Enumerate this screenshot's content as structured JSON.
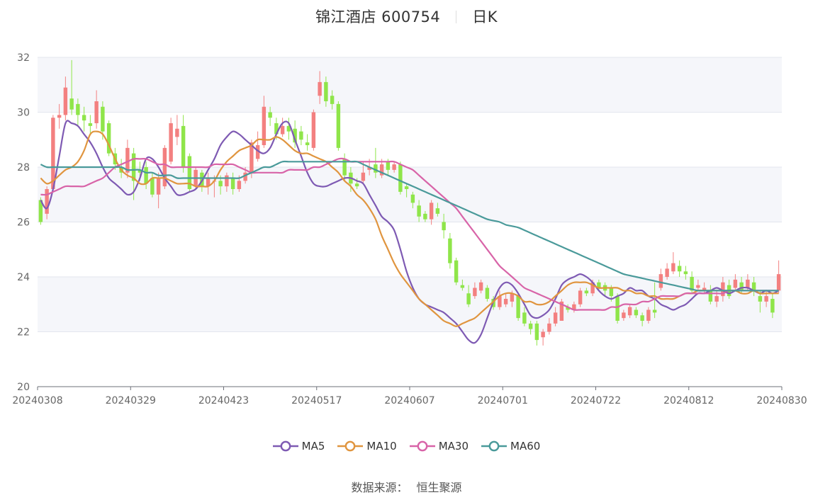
{
  "header": {
    "title": "锦江酒店 600754",
    "period": "日K"
  },
  "source": {
    "label": "数据来源：",
    "name": "恒生聚源"
  },
  "colors": {
    "up": "#f38080",
    "down": "#8fe54a",
    "ma5": "#7e5ab3",
    "ma10": "#e0953f",
    "ma30": "#d864a8",
    "ma60": "#4a9a9a",
    "band": "#f5f6fa",
    "grid": "#e3e6ee",
    "axis": "#666666"
  },
  "chart_data": {
    "type": "candlestick",
    "ylim": [
      20,
      32
    ],
    "y_ticks": [
      "20",
      "22",
      "24",
      "26",
      "28",
      "30",
      "32"
    ],
    "x_ticks": [
      "20240308",
      "20240329",
      "20240423",
      "20240517",
      "20240607",
      "20240701",
      "20240722",
      "20240812",
      "20240830"
    ],
    "num_bars": 120,
    "x_tick_indices": [
      0,
      15,
      30,
      45,
      60,
      75,
      90,
      105,
      120
    ],
    "legend": [
      "MA5",
      "MA10",
      "MA30",
      "MA60"
    ],
    "candles": [
      [
        26.8,
        26.0,
        26.9,
        25.9
      ],
      [
        26.3,
        27.2,
        27.3,
        26.1
      ],
      [
        27.2,
        29.8,
        29.9,
        27.1
      ],
      [
        29.8,
        29.9,
        30.3,
        29.4
      ],
      [
        29.9,
        30.9,
        31.3,
        29.7
      ],
      [
        30.5,
        30.1,
        31.9,
        29.9
      ],
      [
        30.3,
        29.9,
        30.5,
        29.5
      ],
      [
        29.9,
        29.7,
        30.2,
        29.3
      ],
      [
        29.6,
        29.5,
        29.9,
        29.2
      ],
      [
        29.6,
        30.4,
        30.8,
        29.4
      ],
      [
        30.2,
        29.3,
        30.4,
        29.0
      ],
      [
        29.6,
        28.5,
        29.7,
        28.4
      ],
      [
        28.5,
        28.1,
        28.7,
        27.9
      ],
      [
        28.0,
        27.8,
        28.3,
        27.6
      ],
      [
        27.8,
        28.7,
        29.0,
        27.6
      ],
      [
        28.5,
        27.5,
        28.7,
        26.8
      ],
      [
        27.9,
        27.8,
        28.2,
        27.5
      ],
      [
        28.0,
        27.4,
        28.2,
        27.2
      ],
      [
        27.6,
        27.0,
        27.8,
        26.9
      ],
      [
        27.0,
        27.6,
        27.8,
        26.5
      ],
      [
        27.3,
        28.7,
        28.8,
        27.2
      ],
      [
        28.2,
        29.6,
        29.8,
        28.1
      ],
      [
        29.1,
        29.4,
        29.9,
        28.8
      ],
      [
        29.5,
        28.0,
        29.9,
        27.8
      ],
      [
        28.4,
        27.2,
        28.5,
        27.1
      ],
      [
        27.3,
        27.9,
        28.0,
        27.2
      ],
      [
        27.8,
        27.3,
        27.9,
        27.1
      ],
      [
        27.3,
        27.6,
        27.8,
        27.0
      ],
      [
        27.5,
        27.5,
        27.7,
        26.9
      ],
      [
        27.5,
        27.3,
        27.7,
        27.0
      ],
      [
        27.3,
        27.7,
        27.8,
        27.1
      ],
      [
        27.6,
        27.2,
        27.8,
        27.0
      ],
      [
        27.2,
        27.5,
        27.7,
        27.1
      ],
      [
        27.5,
        27.8,
        28.0,
        27.4
      ],
      [
        27.8,
        28.9,
        29.0,
        27.6
      ],
      [
        28.3,
        28.8,
        29.3,
        28.2
      ],
      [
        28.8,
        30.2,
        30.6,
        28.7
      ],
      [
        30.0,
        29.8,
        30.2,
        29.5
      ],
      [
        29.6,
        29.2,
        29.8,
        29.0
      ],
      [
        29.2,
        29.5,
        29.8,
        29.1
      ],
      [
        29.5,
        29.3,
        29.8,
        29.0
      ],
      [
        29.4,
        28.9,
        29.7,
        28.7
      ],
      [
        29.3,
        29.0,
        29.5,
        28.8
      ],
      [
        28.9,
        28.8,
        29.2,
        28.6
      ],
      [
        28.7,
        30.0,
        30.1,
        28.6
      ],
      [
        30.6,
        31.1,
        31.5,
        30.3
      ],
      [
        31.1,
        30.4,
        31.3,
        30.2
      ],
      [
        30.6,
        30.3,
        30.8,
        30.1
      ],
      [
        30.3,
        28.7,
        30.4,
        28.6
      ],
      [
        28.3,
        27.7,
        28.5,
        27.5
      ],
      [
        27.8,
        27.4,
        28.0,
        27.1
      ],
      [
        27.4,
        27.3,
        27.6,
        27.2
      ],
      [
        27.5,
        27.8,
        28.2,
        27.4
      ],
      [
        27.9,
        28.0,
        28.3,
        27.7
      ],
      [
        28.1,
        27.8,
        28.7,
        27.6
      ],
      [
        27.7,
        28.1,
        28.3,
        27.6
      ],
      [
        28.2,
        27.9,
        28.3,
        27.7
      ],
      [
        27.9,
        28.1,
        28.2,
        27.8
      ],
      [
        28.1,
        27.1,
        28.2,
        27.0
      ],
      [
        27.3,
        27.2,
        27.4,
        26.9
      ],
      [
        27.0,
        26.7,
        27.1,
        26.5
      ],
      [
        26.6,
        26.2,
        26.8,
        26.0
      ],
      [
        26.3,
        26.1,
        26.4,
        26.0
      ],
      [
        26.1,
        26.7,
        26.8,
        25.9
      ],
      [
        26.5,
        26.3,
        26.7,
        26.2
      ],
      [
        26.0,
        25.7,
        26.3,
        25.4
      ],
      [
        25.4,
        24.5,
        25.6,
        24.3
      ],
      [
        24.6,
        23.8,
        24.7,
        23.7
      ],
      [
        23.7,
        23.6,
        23.9,
        23.5
      ],
      [
        23.4,
        23.0,
        23.7,
        22.9
      ],
      [
        23.3,
        23.6,
        23.8,
        23.2
      ],
      [
        23.5,
        23.8,
        23.9,
        23.4
      ],
      [
        23.6,
        23.2,
        23.7,
        23.1
      ],
      [
        23.2,
        22.9,
        23.3,
        22.8
      ],
      [
        22.9,
        23.3,
        23.5,
        22.8
      ],
      [
        23.0,
        23.2,
        23.4,
        22.9
      ],
      [
        23.1,
        23.4,
        23.5,
        22.9
      ],
      [
        23.3,
        22.5,
        23.4,
        22.4
      ],
      [
        22.7,
        22.3,
        22.9,
        22.2
      ],
      [
        22.3,
        22.1,
        22.4,
        21.9
      ],
      [
        22.3,
        21.7,
        22.4,
        21.5
      ],
      [
        21.8,
        22.0,
        22.1,
        21.5
      ],
      [
        22.0,
        22.3,
        22.5,
        21.9
      ],
      [
        22.3,
        22.7,
        22.9,
        22.2
      ],
      [
        22.4,
        23.1,
        23.2,
        22.4
      ],
      [
        22.9,
        22.8,
        23.0,
        22.7
      ],
      [
        22.8,
        23.0,
        23.1,
        22.7
      ],
      [
        23.0,
        23.5,
        23.6,
        22.9
      ],
      [
        23.5,
        23.4,
        23.6,
        23.3
      ],
      [
        23.4,
        23.8,
        23.9,
        23.3
      ],
      [
        23.8,
        23.6,
        23.9,
        23.5
      ],
      [
        23.7,
        23.5,
        23.8,
        23.3
      ],
      [
        23.6,
        23.3,
        23.7,
        23.1
      ],
      [
        23.3,
        22.4,
        23.4,
        22.3
      ],
      [
        22.5,
        22.7,
        22.8,
        22.4
      ],
      [
        22.6,
        22.9,
        23.0,
        22.5
      ],
      [
        22.8,
        22.6,
        22.9,
        22.5
      ],
      [
        22.6,
        22.4,
        22.7,
        22.2
      ],
      [
        22.4,
        22.8,
        22.9,
        22.3
      ],
      [
        22.8,
        22.7,
        23.8,
        22.5
      ],
      [
        23.6,
        24.1,
        24.3,
        23.5
      ],
      [
        24.0,
        24.3,
        24.5,
        23.9
      ],
      [
        24.2,
        24.5,
        24.9,
        24.1
      ],
      [
        24.4,
        24.2,
        24.6,
        24.0
      ],
      [
        24.2,
        24.1,
        24.4,
        23.9
      ],
      [
        24.0,
        23.5,
        24.2,
        23.4
      ],
      [
        23.6,
        23.7,
        23.9,
        23.5
      ],
      [
        23.5,
        23.6,
        23.8,
        23.4
      ],
      [
        23.5,
        23.1,
        23.7,
        23.0
      ],
      [
        23.1,
        23.3,
        23.5,
        22.9
      ],
      [
        23.3,
        23.8,
        24.0,
        23.1
      ],
      [
        23.7,
        23.3,
        23.9,
        23.2
      ],
      [
        23.6,
        23.9,
        24.1,
        23.5
      ],
      [
        23.8,
        23.5,
        24.0,
        23.4
      ],
      [
        23.6,
        23.9,
        24.1,
        23.5
      ],
      [
        23.8,
        23.5,
        24.0,
        23.3
      ],
      [
        23.3,
        23.1,
        23.5,
        22.7
      ],
      [
        23.1,
        23.3,
        23.5,
        22.9
      ],
      [
        23.2,
        22.7,
        23.4,
        22.5
      ],
      [
        23.5,
        24.1,
        24.6,
        23.4
      ]
    ],
    "series": [
      {
        "name": "MA5",
        "values": [
          26.8,
          26.5,
          27.2,
          28.4,
          29.6,
          29.6,
          29.5,
          29.2,
          28.9,
          28.5,
          28.0,
          27.6,
          27.4,
          27.2,
          27.0,
          27.1,
          27.6,
          28.3,
          28.3,
          28.0,
          27.6,
          27.3,
          27.0,
          27.0,
          27.1,
          27.2,
          27.5,
          27.9,
          28.3,
          28.8,
          29.1,
          29.3,
          29.2,
          29.0,
          28.8,
          28.6,
          28.5,
          28.7,
          29.2,
          29.6,
          29.6,
          29.0,
          28.4,
          27.8,
          27.4,
          27.3,
          27.3,
          27.4,
          27.5,
          27.6,
          27.6,
          27.5,
          27.4,
          27.0,
          26.6,
          26.2,
          26.0,
          25.7,
          25.0,
          24.2,
          23.6,
          23.2,
          23.0,
          22.9,
          22.8,
          22.7,
          22.5,
          22.3,
          22.0,
          21.7,
          21.6,
          21.9,
          22.5,
          23.1,
          23.6,
          23.8,
          23.7,
          23.4,
          23.0,
          22.6,
          22.5,
          22.6,
          22.8,
          23.2,
          23.7,
          23.9,
          24.0,
          24.1,
          24.0,
          23.8,
          23.5,
          23.3,
          23.2,
          23.3,
          23.4,
          23.6,
          23.5,
          23.5,
          23.3,
          23.2,
          23.0,
          22.9,
          22.8,
          22.9,
          23.0,
          23.2,
          23.4,
          23.4,
          23.5,
          23.6,
          23.5,
          23.4,
          23.5,
          23.6,
          23.6,
          23.5,
          23.4,
          23.5,
          23.4,
          23.5
        ]
      },
      {
        "name": "MA10",
        "values": [
          27.6,
          27.4,
          27.5,
          27.7,
          27.9,
          28.0,
          28.2,
          28.6,
          29.2,
          29.3,
          29.2,
          28.8,
          28.3,
          27.9,
          27.7,
          27.6,
          27.4,
          27.4,
          27.6,
          27.6,
          27.6,
          27.5,
          27.4,
          27.4,
          27.4,
          27.3,
          27.3,
          27.3,
          27.5,
          27.9,
          28.2,
          28.4,
          28.6,
          28.7,
          28.8,
          29.0,
          29.0,
          29.0,
          29.1,
          29.0,
          28.8,
          28.6,
          28.5,
          28.5,
          28.4,
          28.3,
          28.2,
          28.0,
          27.8,
          27.5,
          27.3,
          27.0,
          26.8,
          26.5,
          26.1,
          25.5,
          25.0,
          24.5,
          24.1,
          23.8,
          23.5,
          23.2,
          23.0,
          22.8,
          22.6,
          22.4,
          22.3,
          22.2,
          22.3,
          22.4,
          22.5,
          22.7,
          22.9,
          23.1,
          23.3,
          23.4,
          23.4,
          23.3,
          23.1,
          23.1,
          23.0,
          23.0,
          23.1,
          23.3,
          23.5,
          23.7,
          23.8,
          23.8,
          23.8,
          23.7,
          23.6,
          23.6,
          23.6,
          23.6,
          23.5,
          23.5,
          23.4,
          23.4,
          23.3,
          23.3,
          23.2,
          23.2,
          23.2,
          23.3,
          23.4,
          23.4,
          23.5,
          23.5,
          23.5,
          23.5,
          23.5,
          23.5,
          23.5,
          23.4,
          23.4,
          23.5,
          23.4,
          23.4,
          23.4,
          23.4
        ]
      },
      {
        "name": "MA30",
        "values": [
          27.0,
          27.0,
          27.1,
          27.2,
          27.3,
          27.3,
          27.3,
          27.3,
          27.4,
          27.5,
          27.6,
          27.8,
          28.0,
          28.1,
          28.2,
          28.3,
          28.3,
          28.3,
          28.2,
          28.1,
          28.1,
          28.0,
          28.0,
          28.0,
          28.0,
          28.0,
          28.0,
          28.0,
          28.1,
          28.1,
          28.1,
          28.1,
          28.0,
          27.9,
          27.8,
          27.8,
          27.8,
          27.8,
          27.8,
          27.8,
          27.9,
          27.9,
          27.9,
          27.9,
          28.0,
          28.0,
          28.1,
          28.2,
          28.3,
          28.3,
          28.2,
          28.2,
          28.2,
          28.2,
          28.2,
          28.2,
          28.2,
          28.2,
          28.1,
          28.0,
          27.9,
          27.7,
          27.5,
          27.3,
          27.1,
          26.9,
          26.7,
          26.5,
          26.2,
          25.9,
          25.6,
          25.3,
          25.0,
          24.7,
          24.4,
          24.2,
          24.0,
          23.8,
          23.6,
          23.5,
          23.4,
          23.3,
          23.2,
          23.1,
          23.0,
          22.9,
          22.8,
          22.8,
          22.8,
          22.8,
          22.8,
          22.8,
          22.9,
          22.9,
          23.0,
          23.0,
          23.0,
          23.1,
          23.1,
          23.2,
          23.3,
          23.3,
          23.3,
          23.3,
          23.4,
          23.4,
          23.4,
          23.4,
          23.4,
          23.4,
          23.4,
          23.5,
          23.5,
          23.5,
          23.5,
          23.5,
          23.5,
          23.5,
          23.5,
          23.5
        ]
      },
      {
        "name": "MA60",
        "values": [
          28.1,
          28.0,
          28.0,
          28.0,
          28.0,
          28.0,
          28.0,
          28.0,
          28.0,
          28.0,
          28.0,
          28.0,
          28.0,
          28.0,
          27.9,
          27.9,
          27.9,
          27.8,
          27.8,
          27.7,
          27.7,
          27.7,
          27.6,
          27.6,
          27.6,
          27.6,
          27.6,
          27.6,
          27.6,
          27.6,
          27.6,
          27.6,
          27.6,
          27.7,
          27.8,
          27.9,
          28.0,
          28.0,
          28.1,
          28.2,
          28.2,
          28.2,
          28.2,
          28.2,
          28.2,
          28.2,
          28.2,
          28.2,
          28.2,
          28.2,
          28.2,
          28.2,
          28.1,
          28.0,
          27.9,
          27.8,
          27.7,
          27.6,
          27.5,
          27.4,
          27.3,
          27.2,
          27.1,
          27.0,
          26.9,
          26.8,
          26.7,
          26.6,
          26.5,
          26.4,
          26.3,
          26.2,
          26.1,
          26.05,
          26.0,
          25.9,
          25.85,
          25.8,
          25.7,
          25.6,
          25.5,
          25.4,
          25.3,
          25.2,
          25.1,
          25.0,
          24.9,
          24.8,
          24.7,
          24.6,
          24.5,
          24.4,
          24.3,
          24.2,
          24.1,
          24.05,
          24.0,
          23.95,
          23.9,
          23.85,
          23.8,
          23.75,
          23.7,
          23.65,
          23.6,
          23.55,
          23.5,
          23.5,
          23.5,
          23.5,
          23.5,
          23.5,
          23.5,
          23.5,
          23.5,
          23.5,
          23.5,
          23.5,
          23.5,
          23.5
        ]
      }
    ]
  }
}
